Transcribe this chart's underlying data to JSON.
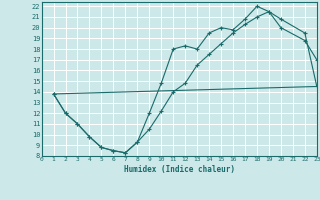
{
  "xlabel": "Humidex (Indice chaleur)",
  "bg_color": "#cce8e8",
  "grid_color": "#ffffff",
  "line_color": "#1a6b6b",
  "xlim": [
    0,
    23
  ],
  "ylim": [
    8,
    22.4
  ],
  "xticks": [
    0,
    1,
    2,
    3,
    4,
    5,
    6,
    7,
    8,
    9,
    10,
    11,
    12,
    13,
    14,
    15,
    16,
    17,
    18,
    19,
    20,
    21,
    22,
    23
  ],
  "yticks": [
    8,
    9,
    10,
    11,
    12,
    13,
    14,
    15,
    16,
    17,
    18,
    19,
    20,
    21,
    22
  ],
  "line1_x": [
    1,
    2,
    3,
    4,
    5,
    6,
    7,
    8,
    9,
    10,
    11,
    12,
    13,
    14,
    15,
    16,
    17,
    18,
    19,
    20,
    22,
    23
  ],
  "line1_y": [
    13.8,
    12.0,
    11.0,
    9.8,
    8.8,
    8.5,
    8.3,
    9.3,
    12.0,
    14.8,
    18.0,
    18.3,
    18.0,
    19.5,
    20.0,
    19.8,
    20.8,
    22.0,
    21.5,
    20.0,
    18.8,
    17.0
  ],
  "line2_x": [
    1,
    2,
    3,
    4,
    5,
    6,
    7,
    8,
    9,
    10,
    11,
    12,
    13,
    14,
    15,
    16,
    17,
    18,
    19,
    20,
    22,
    23
  ],
  "line2_y": [
    13.8,
    12.0,
    11.0,
    9.8,
    8.8,
    8.5,
    8.3,
    9.3,
    10.5,
    12.2,
    14.0,
    14.8,
    16.5,
    17.5,
    18.5,
    19.5,
    20.3,
    21.0,
    21.5,
    20.8,
    19.5,
    14.5
  ],
  "line3_x": [
    1,
    23
  ],
  "line3_y": [
    13.8,
    14.5
  ]
}
